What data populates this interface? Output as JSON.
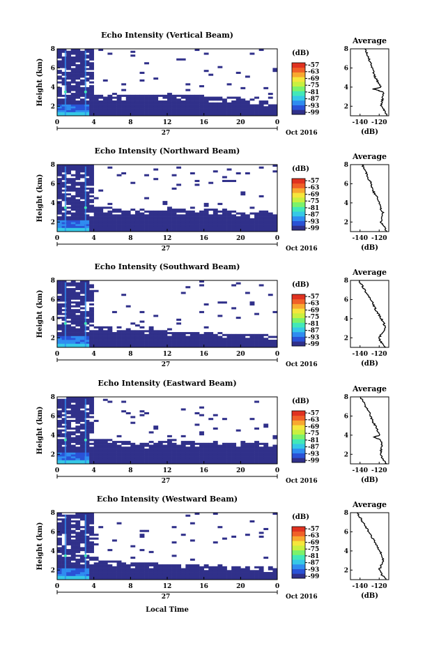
{
  "figure": {
    "date_label": "Oct 2016",
    "day_label": "27",
    "xlabel": "Local Time",
    "ylabel": "Height (km)"
  },
  "colorbar": {
    "unit": "(dB)",
    "tick_labels": [
      "-57",
      "-63",
      "-69",
      "-75",
      "-81",
      "-87",
      "-93",
      "-99"
    ],
    "colors": [
      "#30308a",
      "#2a52d6",
      "#2f8cf0",
      "#36c8e6",
      "#42e8b8",
      "#7cf26a",
      "#c8f040",
      "#f5e63c",
      "#f8a830",
      "#f06028",
      "#e03220"
    ]
  },
  "average_panel": {
    "title": "Average",
    "xlabel": "(dB)"
  },
  "chart_data": [
    {
      "type": "heatmap",
      "title": "Echo Intensity (Vertical Beam)",
      "xlabel": "Local Time",
      "ylabel": "Height (km)",
      "x_ticks": [
        "0",
        "4",
        "8",
        "12",
        "16",
        "20",
        "0"
      ],
      "y_ticks": [
        "2",
        "4",
        "6",
        "8"
      ],
      "xlim": [
        0,
        24
      ],
      "ylim": [
        1,
        8
      ],
      "colorbar_unit": "(dB)",
      "colorbar_range": [
        -99,
        -57
      ],
      "echo_top_km_by_hour": [
        8,
        8,
        8,
        8,
        3,
        3,
        3,
        3,
        3,
        3,
        3,
        3,
        3,
        3,
        3,
        3,
        2.8,
        2.8,
        2.8,
        2.8,
        2.7,
        2.6,
        2.4,
        2.3
      ],
      "average_profile": {
        "title": "Average",
        "xlabel": "(dB)",
        "x_ticks": [
          "-140",
          "-120"
        ],
        "y_ticks": [
          "2",
          "4",
          "6",
          "8"
        ],
        "xlim": [
          -150,
          -110
        ],
        "height_km": [
          1,
          1.5,
          2,
          2.5,
          3,
          3.5,
          3.8,
          4,
          4.5,
          5,
          5.5,
          6,
          6.5,
          7,
          7.5,
          8
        ],
        "intensity_db": [
          -112,
          -114,
          -118,
          -117,
          -116,
          -116,
          -126,
          -118,
          -121,
          -124,
          -126,
          -127,
          -129,
          -131,
          -133,
          -135
        ]
      }
    },
    {
      "type": "heatmap",
      "title": "Echo Intensity (Northward Beam)",
      "xlabel": "Local Time",
      "ylabel": "Height (km)",
      "x_ticks": [
        "0",
        "4",
        "8",
        "12",
        "16",
        "20",
        "0"
      ],
      "y_ticks": [
        "2",
        "4",
        "6",
        "8"
      ],
      "xlim": [
        0,
        24
      ],
      "ylim": [
        1,
        8
      ],
      "colorbar_unit": "(dB)",
      "colorbar_range": [
        -99,
        -57
      ],
      "echo_top_km_by_hour": [
        8,
        8,
        8,
        8,
        3.5,
        3.4,
        3.2,
        3.1,
        3.0,
        3.0,
        3.0,
        3.1,
        3.3,
        3.2,
        3.4,
        3.3,
        3.2,
        3.2,
        3.3,
        3.0,
        2.9,
        2.8,
        3.0,
        2.9
      ],
      "average_profile": {
        "title": "Average",
        "xlabel": "(dB)",
        "x_ticks": [
          "-140",
          "-120"
        ],
        "y_ticks": [
          "2",
          "4",
          "6",
          "8"
        ],
        "xlim": [
          -150,
          -110
        ],
        "height_km": [
          1,
          1.5,
          2,
          2.5,
          3,
          3.5,
          4,
          4.5,
          5,
          5.5,
          6,
          6.5,
          7,
          7.5,
          8
        ],
        "intensity_db": [
          -112,
          -115,
          -118,
          -117,
          -116,
          -119,
          -120,
          -122,
          -125,
          -127,
          -128,
          -131,
          -133,
          -135,
          -138
        ]
      }
    },
    {
      "type": "heatmap",
      "title": "Echo Intensity (Southward Beam)",
      "xlabel": "Local Time",
      "ylabel": "Height (km)",
      "x_ticks": [
        "0",
        "4",
        "8",
        "12",
        "16",
        "20",
        "0"
      ],
      "y_ticks": [
        "2",
        "4",
        "6",
        "8"
      ],
      "xlim": [
        0,
        24
      ],
      "ylim": [
        1,
        8
      ],
      "colorbar_unit": "(dB)",
      "colorbar_range": [
        -99,
        -57
      ],
      "echo_top_km_by_hour": [
        8,
        8,
        8,
        8,
        3.0,
        3.1,
        2.9,
        2.8,
        2.7,
        2.7,
        2.6,
        2.6,
        2.5,
        2.5,
        2.4,
        2.5,
        2.4,
        2.4,
        2.3,
        2.3,
        2.2,
        2.2,
        2.2,
        2.1
      ],
      "average_profile": {
        "title": "Average",
        "xlabel": "(dB)",
        "x_ticks": [
          "-140",
          "-120"
        ],
        "y_ticks": [
          "2",
          "4",
          "6",
          "8"
        ],
        "xlim": [
          -150,
          -110
        ],
        "height_km": [
          1,
          1.5,
          2,
          2.5,
          3,
          3.5,
          4,
          4.5,
          5,
          5.5,
          6,
          6.5,
          7,
          7.5,
          8
        ],
        "intensity_db": [
          -113,
          -118,
          -120,
          -117,
          -114,
          -115,
          -118,
          -121,
          -124,
          -126,
          -129,
          -132,
          -135,
          -138,
          -141
        ]
      }
    },
    {
      "type": "heatmap",
      "title": "Echo Intensity (Eastward Beam)",
      "xlabel": "Local Time",
      "ylabel": "Height (km)",
      "x_ticks": [
        "0",
        "4",
        "8",
        "12",
        "16",
        "20",
        "0"
      ],
      "y_ticks": [
        "2",
        "4",
        "6",
        "8"
      ],
      "xlim": [
        0,
        24
      ],
      "ylim": [
        1,
        8
      ],
      "colorbar_unit": "(dB)",
      "colorbar_range": [
        -99,
        -57
      ],
      "echo_top_km_by_hour": [
        8,
        8,
        8,
        8,
        3.6,
        3.5,
        3.3,
        3.2,
        3.1,
        3.0,
        3.2,
        3.3,
        3.4,
        3.3,
        3.2,
        3.1,
        3.1,
        3.2,
        3.1,
        3.0,
        3.2,
        3.3,
        3.1,
        2.9
      ],
      "average_profile": {
        "title": "Average",
        "xlabel": "(dB)",
        "x_ticks": [
          "-140",
          "-120"
        ],
        "y_ticks": [
          "2",
          "4",
          "6",
          "8"
        ],
        "xlim": [
          -150,
          -110
        ],
        "height_km": [
          1,
          1.5,
          2,
          2.5,
          3,
          3.5,
          3.8,
          4,
          4.5,
          5,
          5.5,
          6,
          6.5,
          7,
          7.5,
          8
        ],
        "intensity_db": [
          -112,
          -116,
          -119,
          -118,
          -117,
          -118,
          -126,
          -119,
          -122,
          -124,
          -127,
          -129,
          -131,
          -134,
          -137,
          -140
        ]
      }
    },
    {
      "type": "heatmap",
      "title": "Echo Intensity (Westward Beam)",
      "xlabel": "Local Time",
      "ylabel": "Height (km)",
      "x_ticks": [
        "0",
        "4",
        "8",
        "12",
        "16",
        "20",
        "0"
      ],
      "y_ticks": [
        "2",
        "4",
        "6",
        "8"
      ],
      "xlim": [
        0,
        24
      ],
      "ylim": [
        1,
        8
      ],
      "colorbar_unit": "(dB)",
      "colorbar_range": [
        -99,
        -57
      ],
      "echo_top_km_by_hour": [
        8,
        8,
        8,
        8,
        3.0,
        2.9,
        2.8,
        2.7,
        2.6,
        2.6,
        2.6,
        2.5,
        2.5,
        2.5,
        2.4,
        2.4,
        2.4,
        2.4,
        2.3,
        2.3,
        2.3,
        2.3,
        2.2,
        2.2
      ],
      "average_profile": {
        "title": "Average",
        "xlabel": "(dB)",
        "x_ticks": [
          "-140",
          "-120"
        ],
        "y_ticks": [
          "2",
          "4",
          "6",
          "8"
        ],
        "xlim": [
          -150,
          -110
        ],
        "height_km": [
          1,
          1.5,
          2,
          2.5,
          3,
          3.5,
          4,
          4.5,
          5,
          5.5,
          6,
          6.5,
          7,
          7.5,
          8
        ],
        "intensity_db": [
          -113,
          -117,
          -120,
          -118,
          -116,
          -117,
          -119,
          -122,
          -125,
          -128,
          -131,
          -134,
          -137,
          -140,
          -143
        ]
      }
    }
  ]
}
